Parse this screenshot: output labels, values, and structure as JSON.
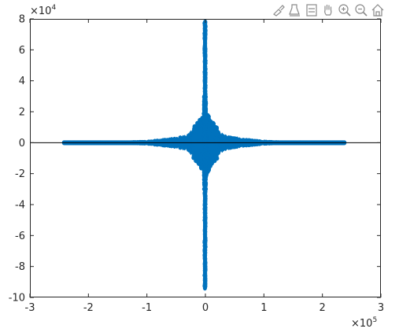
{
  "toolbar": {
    "buttons": [
      {
        "name": "brush-icon"
      },
      {
        "name": "data-tips-icon"
      },
      {
        "name": "rotate-icon"
      },
      {
        "name": "pan-icon"
      },
      {
        "name": "zoom-in-icon"
      },
      {
        "name": "zoom-out-icon"
      },
      {
        "name": "home-icon"
      }
    ]
  },
  "chart_data": {
    "type": "scatter",
    "title": "",
    "xlabel": "",
    "ylabel": "",
    "xlim": [
      -300000,
      300000
    ],
    "ylim": [
      -100000,
      80000
    ],
    "x_ticks": [
      -3,
      -2,
      -1,
      0,
      1,
      2,
      3
    ],
    "y_ticks": [
      -10,
      -8,
      -6,
      -4,
      -2,
      0,
      2,
      4,
      6,
      8
    ],
    "x_exponent_label": "×10",
    "x_exponent": "5",
    "y_exponent_label": "×10",
    "y_exponent": "4",
    "grid": false,
    "box": true,
    "zero_line": true,
    "marker_color": "#0072BD",
    "axis_color": "#262626",
    "series": [
      {
        "description": "dense cross-shaped cloud of points",
        "horizontal_arm": {
          "x_range": [
            -242000,
            238000
          ],
          "y_at": 0
        },
        "vertical_arm": {
          "x_at": 0,
          "y_range": [
            -94000,
            78000
          ]
        },
        "envelope": [
          {
            "x": -240000,
            "y_halfwidth": 500
          },
          {
            "x": -200000,
            "y_halfwidth": 700
          },
          {
            "x": -150000,
            "y_halfwidth": 1200
          },
          {
            "x": -100000,
            "y_halfwidth": 2000
          },
          {
            "x": -60000,
            "y_halfwidth": 3500
          },
          {
            "x": -30000,
            "y_halfwidth": 6000
          },
          {
            "x": -10000,
            "y_halfwidth": 14000
          },
          {
            "x": 0,
            "y_halfwidth": 22000
          },
          {
            "x": 10000,
            "y_halfwidth": 14000
          },
          {
            "x": 30000,
            "y_halfwidth": 6000
          },
          {
            "x": 60000,
            "y_halfwidth": 3500
          },
          {
            "x": 100000,
            "y_halfwidth": 2000
          },
          {
            "x": 150000,
            "y_halfwidth": 1200
          },
          {
            "x": 200000,
            "y_halfwidth": 700
          },
          {
            "x": 236000,
            "y_halfwidth": 500
          }
        ],
        "vertical_spike_halfwidth_x": 5000
      }
    ]
  }
}
